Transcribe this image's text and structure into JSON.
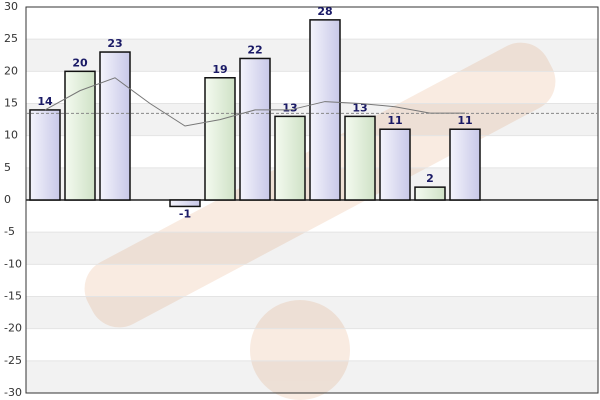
{
  "chart_data": {
    "type": "bar",
    "series": [
      {
        "values": [
          14,
          20,
          23,
          null,
          -1,
          19,
          22,
          13,
          28,
          13,
          11,
          2,
          11
        ],
        "colors": [
          "#dcdcf2",
          "#dcecd4"
        ]
      },
      {
        "type": "line",
        "color": "#777777",
        "values": [
          14,
          17,
          19,
          15,
          11.5,
          12.5,
          14,
          14,
          15.3,
          15,
          14.5,
          13.5,
          13.5
        ]
      }
    ],
    "average_line": 13.46,
    "ylim": [
      -30,
      30
    ],
    "yticks": [
      30,
      25,
      20,
      15,
      10,
      5,
      0,
      -5,
      -10,
      -15,
      -20,
      -25,
      -30
    ],
    "grid": true
  }
}
